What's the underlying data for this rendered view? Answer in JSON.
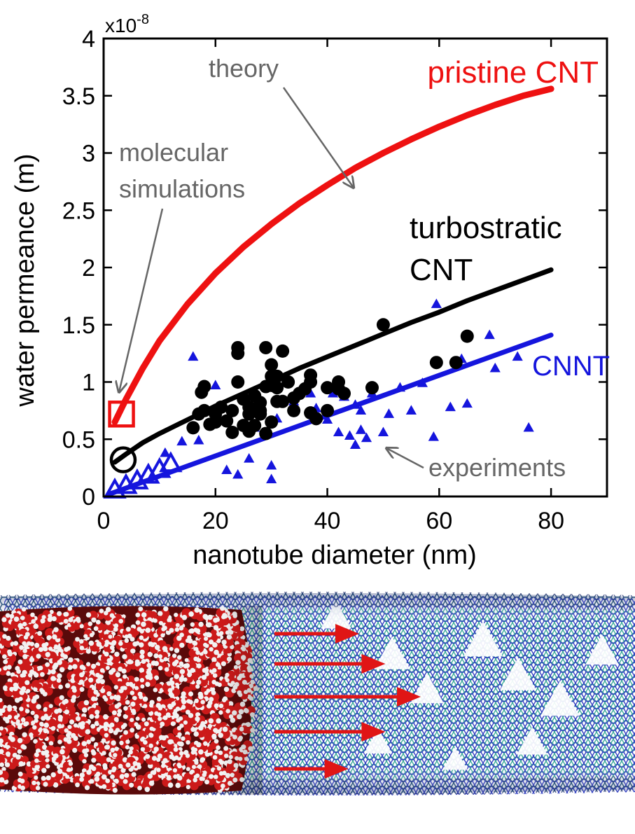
{
  "chart_data": {
    "type": "scatter",
    "xlabel": "nanotube diameter (nm)",
    "ylabel": "water permeance (m)",
    "xlim": [
      0,
      90
    ],
    "ylim": [
      0,
      4
    ],
    "y_multiplier": "x10",
    "y_multiplier_exp": "-8",
    "x_ticks": [
      0,
      20,
      40,
      60,
      80
    ],
    "x_tick_labels": [
      "0",
      "20",
      "40",
      "60",
      "80"
    ],
    "y_ticks": [
      0,
      0.5,
      1,
      1.5,
      2,
      2.5,
      3,
      3.5,
      4
    ],
    "y_tick_labels": [
      "0",
      "0.5",
      "1",
      "1.5",
      "2",
      "2.5",
      "3",
      "3.5",
      "4"
    ],
    "grid": false,
    "colors": {
      "pristine": "#ee1111",
      "turbostratic": "#000000",
      "cnnt": "#1515dd",
      "annotation": "#666666",
      "axis": "#000000"
    },
    "labels": {
      "pristine": "pristine CNT",
      "turbostratic_line1": "turbostratic",
      "turbostratic_line2": "CNT",
      "cnnt": "CNNT",
      "theory": "theory",
      "molecular_line1": "molecular",
      "molecular_line2": "simulations",
      "experiments": "experiments"
    },
    "theory_curves": [
      {
        "name": "pristine CNT",
        "color": "#ee1111",
        "x": [
          2,
          4,
          7,
          10,
          15,
          20,
          25,
          30,
          35,
          40,
          45,
          50,
          55,
          60,
          65,
          70,
          75,
          80
        ],
        "y": [
          0.65,
          0.85,
          1.12,
          1.36,
          1.68,
          1.95,
          2.18,
          2.38,
          2.56,
          2.72,
          2.87,
          3.0,
          3.12,
          3.23,
          3.33,
          3.42,
          3.5,
          3.56
        ]
      },
      {
        "name": "turbostratic CNT",
        "color": "#000000",
        "x": [
          2,
          4,
          7,
          10,
          15,
          20,
          25,
          30,
          35,
          40,
          45,
          50,
          55,
          60,
          65,
          70,
          75,
          80
        ],
        "y": [
          0.3,
          0.37,
          0.47,
          0.55,
          0.67,
          0.79,
          0.9,
          1.01,
          1.12,
          1.22,
          1.32,
          1.42,
          1.52,
          1.61,
          1.71,
          1.8,
          1.89,
          1.98
        ]
      },
      {
        "name": "CNNT",
        "color": "#1515dd",
        "x": [
          1,
          80
        ],
        "y": [
          0.02,
          1.41
        ]
      }
    ],
    "simulations": [
      {
        "series": "pristine CNT",
        "marker": "square",
        "color": "#ee1111",
        "x": 3.2,
        "y": 0.72
      },
      {
        "series": "turbostratic CNT",
        "marker": "circle",
        "color": "#000000",
        "x": 3.5,
        "y": 0.32
      },
      {
        "series": "CNNT",
        "marker": "triangle",
        "color": "#1515dd",
        "x": [
          2,
          4,
          6,
          8,
          10,
          12
        ],
        "y": [
          0.03,
          0.07,
          0.11,
          0.16,
          0.21,
          0.26
        ]
      }
    ],
    "experiments": {
      "turbostratic_circles": {
        "color": "#000000",
        "x": [
          16,
          17,
          17.5,
          18,
          18,
          19,
          20,
          20,
          21,
          22,
          23,
          23,
          24,
          24,
          24,
          25,
          25,
          26,
          26,
          26,
          27,
          27,
          28,
          28,
          28,
          29,
          29,
          29,
          30,
          30,
          30,
          30,
          31,
          31,
          31,
          32,
          32,
          33,
          34,
          34,
          35,
          36,
          37,
          37,
          37,
          38,
          40,
          40,
          42,
          42,
          43,
          48,
          50,
          59.5,
          63,
          65
        ],
        "y": [
          0.6,
          0.72,
          0.91,
          0.96,
          0.75,
          0.63,
          0.72,
          0.65,
          0.78,
          0.66,
          0.56,
          0.75,
          1.3,
          1.25,
          1.0,
          0.85,
          0.62,
          0.72,
          0.78,
          0.57,
          0.62,
          0.88,
          0.72,
          0.82,
          0.75,
          1.3,
          0.96,
          0.55,
          1.15,
          1.05,
          0.97,
          0.65,
          0.83,
          0.95,
          1.05,
          1.27,
          0.83,
          1.0,
          0.86,
          0.75,
          0.9,
          0.94,
          1.06,
          1.0,
          0.73,
          0.68,
          0.95,
          0.75,
          1.0,
          0.94,
          0.9,
          0.95,
          1.5,
          1.17,
          1.17,
          1.4
        ]
      },
      "cnnt_triangles": {
        "color": "#1515dd",
        "x": [
          11,
          14,
          16,
          17,
          20,
          22,
          24,
          26,
          27,
          30,
          30,
          31,
          34,
          37,
          38,
          40,
          41,
          42,
          43,
          44,
          45,
          45,
          46,
          46,
          47,
          48,
          50,
          51,
          53,
          55,
          57,
          59,
          59.5,
          62,
          64,
          65,
          69,
          70,
          74,
          76
        ],
        "y": [
          0.38,
          0.48,
          1.22,
          0.49,
          0.97,
          0.23,
          0.19,
          0.33,
          0.6,
          0.15,
          0.27,
          0.68,
          0.83,
          0.9,
          0.77,
          0.67,
          0.9,
          0.56,
          0.87,
          0.53,
          0.45,
          0.8,
          0.75,
          0.58,
          0.51,
          0.9,
          0.56,
          0.72,
          0.95,
          0.75,
          0.99,
          0.52,
          1.68,
          0.78,
          1.2,
          0.81,
          1.41,
          1.12,
          1.22,
          0.6
        ]
      }
    }
  },
  "illustration": {
    "water_colors": {
      "oxygen": "#cc1a1a",
      "hydrogen": "#f2f2f2",
      "shadow": "#5a0a0a"
    },
    "tube_colors": {
      "bond_blue": "#1a2ab8",
      "bond_teal": "#3aa89a",
      "bond_dark": "#1a2a6a"
    },
    "flow_arrow_color": "#e01515",
    "flow_arrow_lengths": [
      0.55,
      0.72,
      0.95,
      0.72,
      0.48
    ]
  }
}
